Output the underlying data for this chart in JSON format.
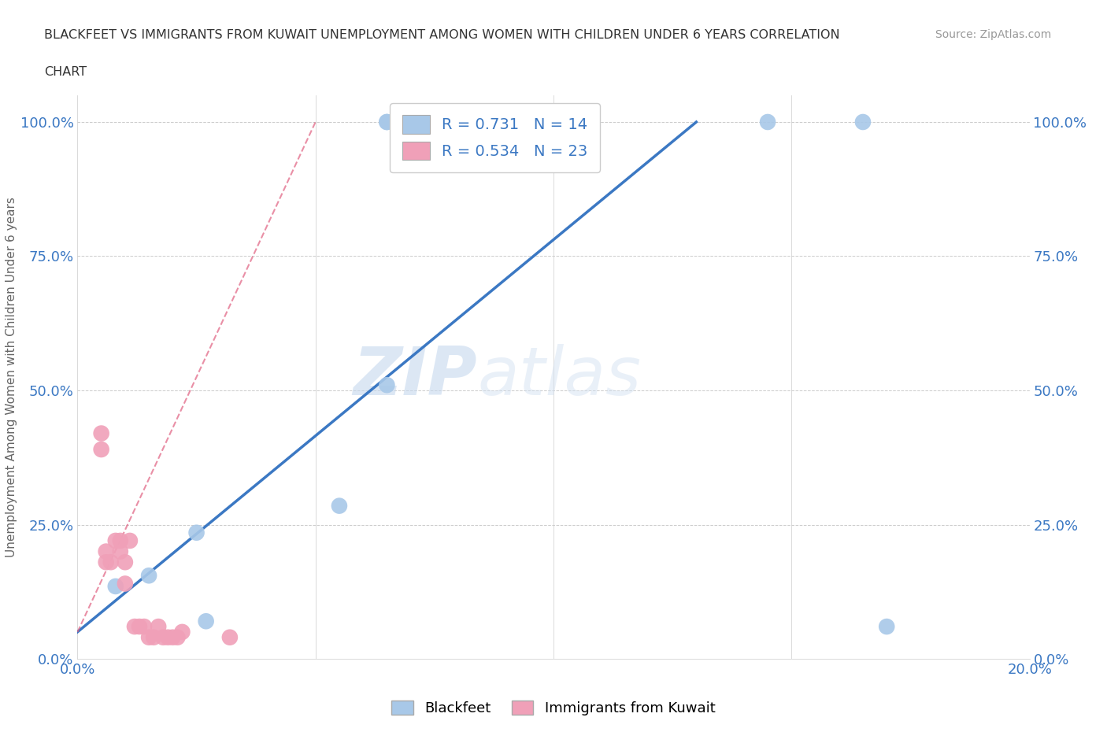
{
  "title_line1": "BLACKFEET VS IMMIGRANTS FROM KUWAIT UNEMPLOYMENT AMONG WOMEN WITH CHILDREN UNDER 6 YEARS CORRELATION",
  "title_line2": "CHART",
  "source": "Source: ZipAtlas.com",
  "ylabel": "Unemployment Among Women with Children Under 6 years",
  "xmin": 0.0,
  "xmax": 0.2,
  "ymin": 0.0,
  "ymax": 1.05,
  "x_ticks": [
    0.0,
    0.2
  ],
  "y_ticks": [
    0.0,
    0.25,
    0.5,
    0.75,
    1.0
  ],
  "y_tick_labels": [
    "0.0%",
    "25.0%",
    "50.0%",
    "75.0%",
    "100.0%"
  ],
  "x_tick_labels": [
    "0.0%",
    "20.0%"
  ],
  "blue_color": "#A8C8E8",
  "pink_color": "#F0A0B8",
  "blue_line_color": "#3B78C3",
  "pink_line_color": "#E06080",
  "grid_color": "#CCCCCC",
  "watermark_zip": "ZIP",
  "watermark_atlas": "atlas",
  "R_blue": 0.731,
  "N_blue": 14,
  "R_pink": 0.534,
  "N_pink": 23,
  "blue_scatter_x": [
    0.025,
    0.055,
    0.008,
    0.015,
    0.027,
    0.065,
    0.09,
    0.065,
    0.105,
    0.145,
    0.165,
    0.065,
    0.08,
    0.17
  ],
  "blue_scatter_y": [
    0.235,
    0.285,
    0.135,
    0.155,
    0.07,
    0.51,
    1.0,
    1.0,
    1.0,
    1.0,
    1.0,
    1.0,
    1.0,
    0.06
  ],
  "pink_scatter_x": [
    0.005,
    0.005,
    0.006,
    0.006,
    0.007,
    0.008,
    0.009,
    0.009,
    0.01,
    0.01,
    0.011,
    0.012,
    0.013,
    0.014,
    0.015,
    0.016,
    0.017,
    0.018,
    0.019,
    0.02,
    0.021,
    0.022,
    0.032
  ],
  "pink_scatter_y": [
    0.39,
    0.42,
    0.18,
    0.2,
    0.18,
    0.22,
    0.2,
    0.22,
    0.14,
    0.18,
    0.22,
    0.06,
    0.06,
    0.06,
    0.04,
    0.04,
    0.06,
    0.04,
    0.04,
    0.04,
    0.04,
    0.05,
    0.04
  ],
  "blue_line_x": [
    0.0,
    0.13
  ],
  "blue_line_y": [
    0.05,
    1.0
  ],
  "pink_line_x": [
    0.0,
    0.05
  ],
  "pink_line_y": [
    0.05,
    1.0
  ]
}
